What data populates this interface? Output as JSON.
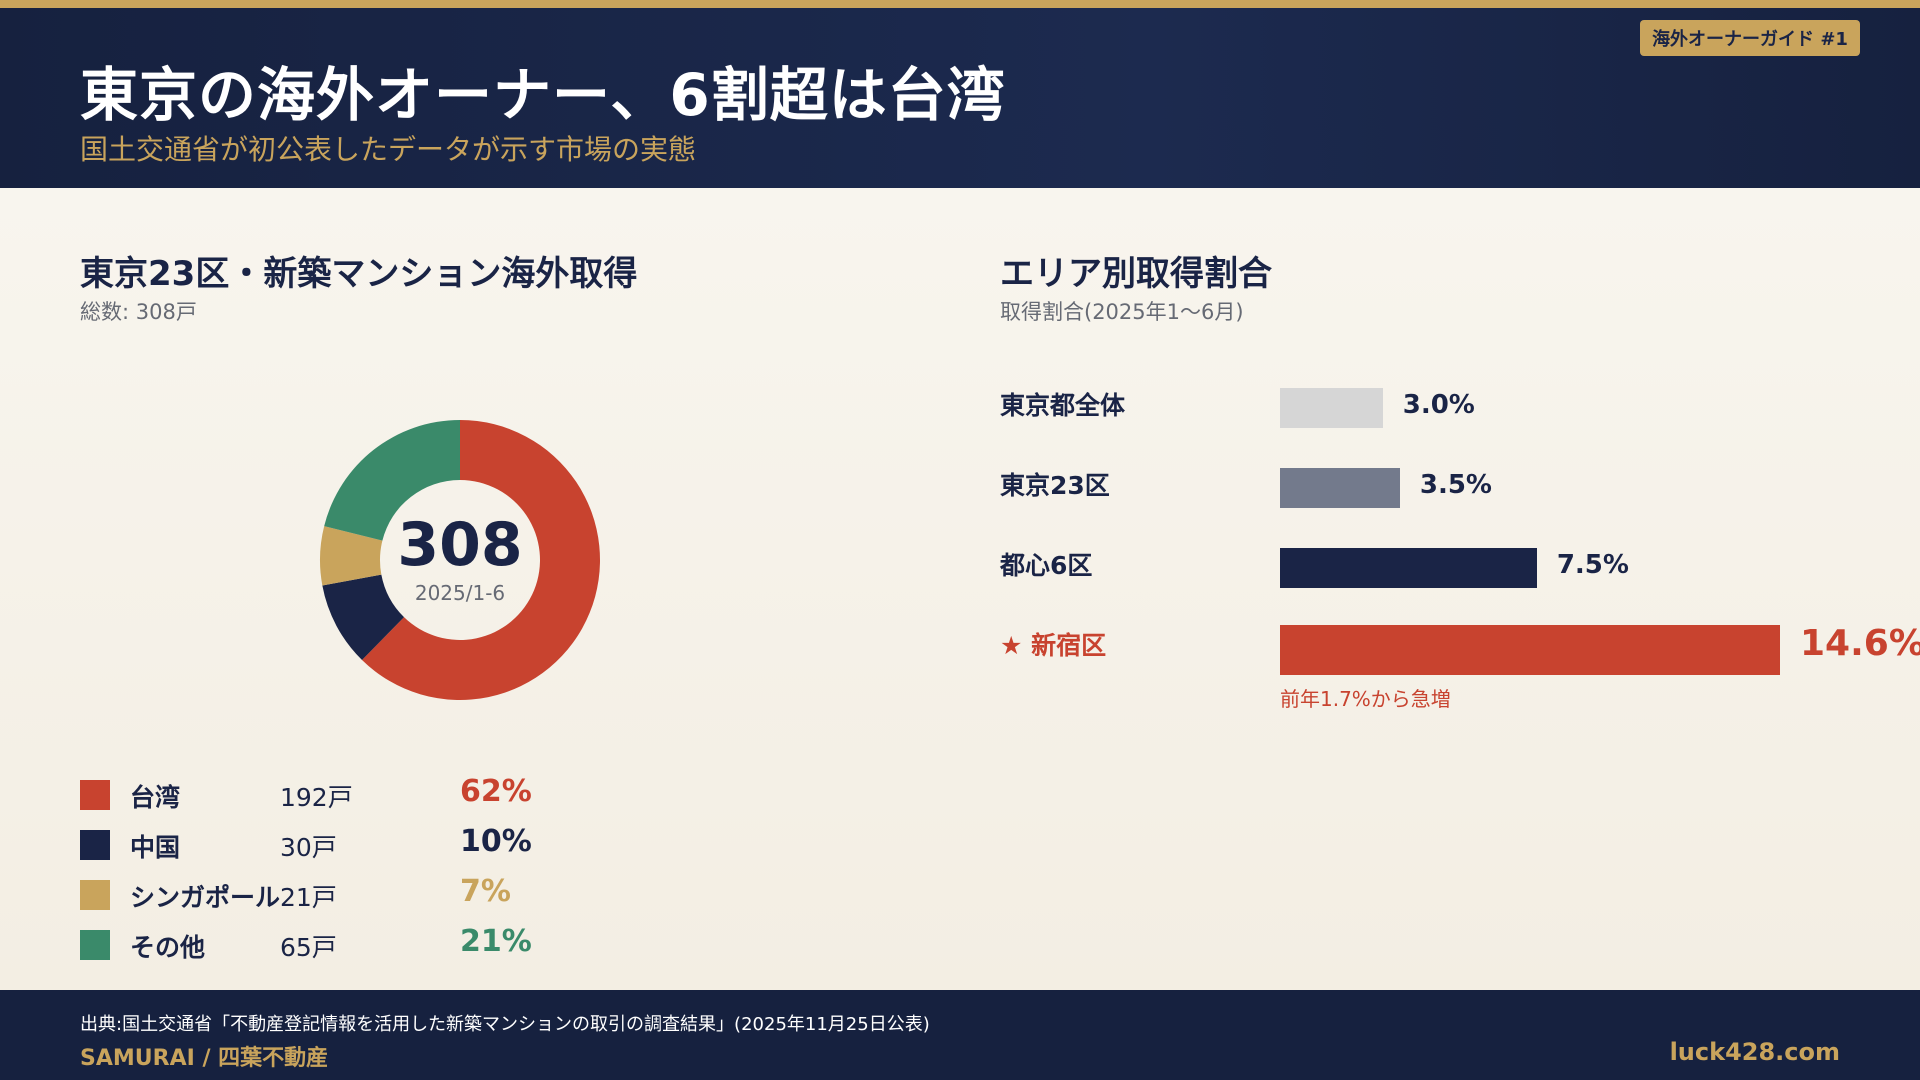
{
  "header": {
    "badge": "海外オーナーガイド #1",
    "title": "東京の海外オーナー、6割超は台湾",
    "subtitle": "国土交通省が初公表したデータが示す市場の実態"
  },
  "colors": {
    "navy": "#1a2446",
    "gold": "#c9a45c",
    "red": "#c8432f",
    "green": "#3a8a6a",
    "light_gray": "#d6d6d6",
    "slate": "#737a8c"
  },
  "chart_data": [
    {
      "type": "pie",
      "title": "東京23区・新築マンション海外取得",
      "subtitle": "総数: 308戸",
      "center_value": "308",
      "center_label": "2025/1-6",
      "slices": [
        {
          "name": "台湾",
          "count_label": "192戸",
          "value": 192,
          "pct_label": "62%",
          "color": "#c8432f"
        },
        {
          "name": "中国",
          "count_label": "30戸",
          "value": 30,
          "pct_label": "10%",
          "color": "#1a2446"
        },
        {
          "name": "シンガポール",
          "count_label": "21戸",
          "value": 21,
          "pct_label": "7%",
          "color": "#c9a45c"
        },
        {
          "name": "その他",
          "count_label": "65戸",
          "value": 65,
          "pct_label": "21%",
          "color": "#3a8a6a"
        }
      ]
    },
    {
      "type": "bar",
      "orientation": "horizontal",
      "title": "エリア別取得割合",
      "subtitle": "取得割合(2025年1〜6月)",
      "categories": [
        "東京都全体",
        "東京23区",
        "都心6区",
        "★ 新宿区"
      ],
      "values": [
        3.0,
        3.5,
        7.5,
        14.6
      ],
      "value_labels": [
        "3.0%",
        "3.5%",
        "7.5%",
        "14.6%"
      ],
      "colors": [
        "#d6d6d6",
        "#737a8c",
        "#1a2446",
        "#c8432f"
      ],
      "highlight_index": 3,
      "note": "前年1.7%から急増",
      "xlim": [
        0,
        14.6
      ]
    }
  ],
  "footer": {
    "source": "出典:国土交通省「不動産登記情報を活用した新築マンションの取引の調査結果」(2025年11月25日公表)",
    "brand": "SAMURAI / 四葉不動産",
    "site": "luck428.com"
  }
}
